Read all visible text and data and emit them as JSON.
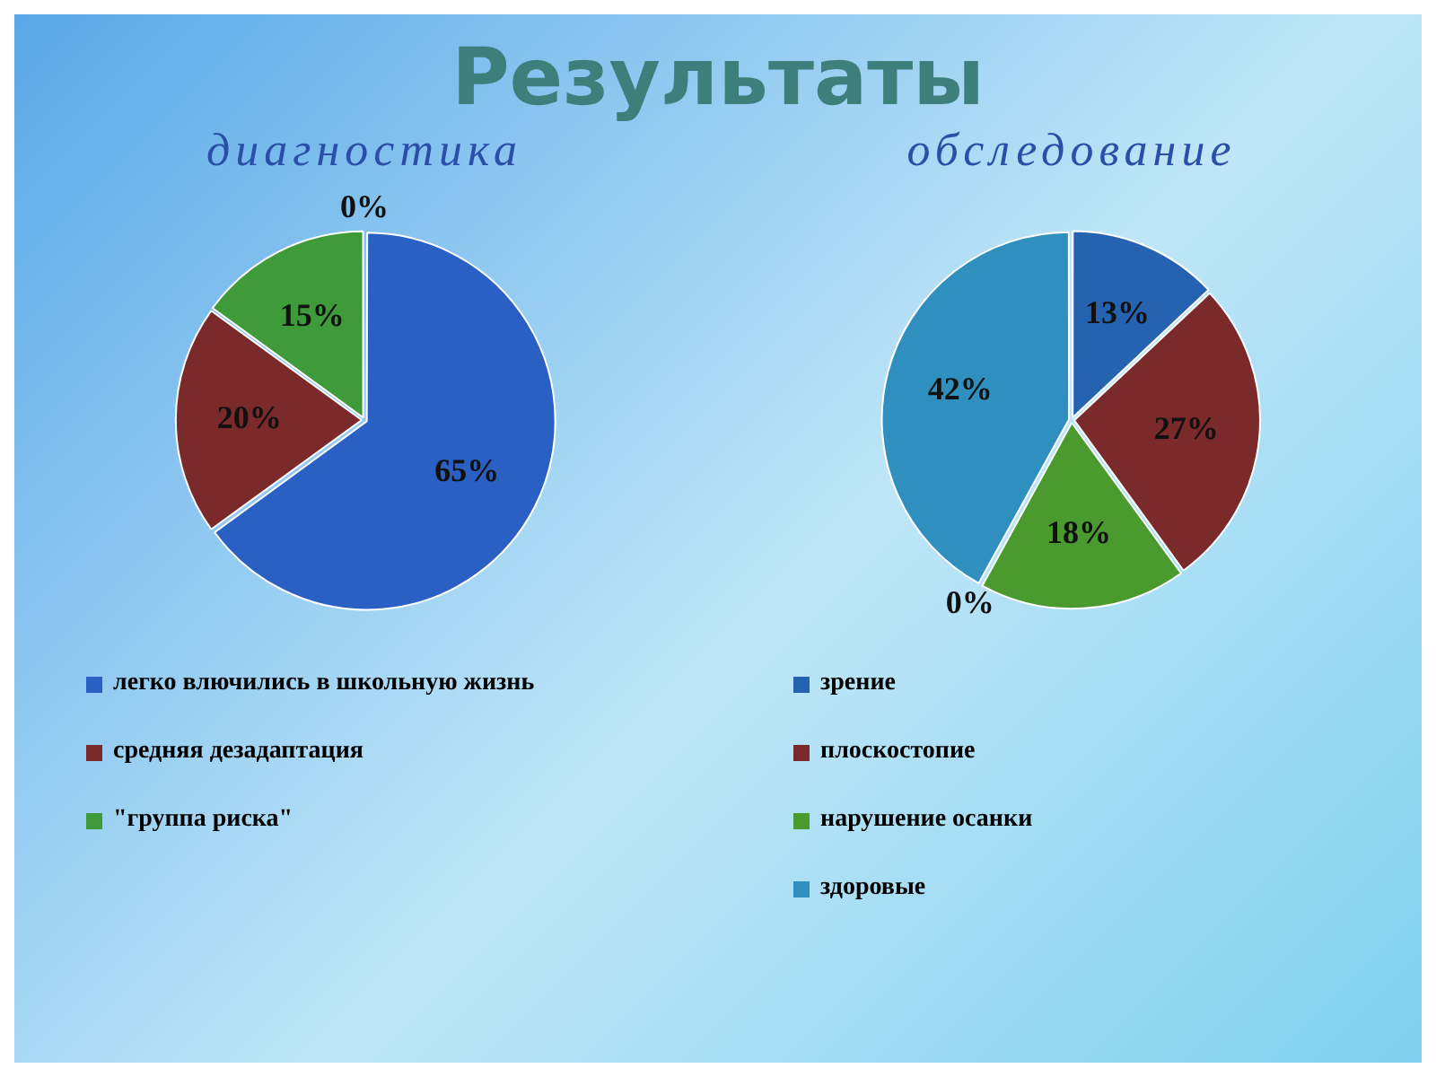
{
  "chart_data": [
    {
      "type": "pie",
      "title": "Результаты",
      "subtitle": "диагностика",
      "categories": [
        "легко влючились в школьную жизнь",
        "средняя дезадаптация",
        "\"группа риска\"",
        null
      ],
      "values": [
        65,
        20,
        15,
        0
      ],
      "colors": [
        "#2a5fc4",
        "#7a2a2a",
        "#3f9a3a",
        "#1f3f8f"
      ],
      "value_labels": [
        "65%",
        "20%",
        "15%",
        "0%"
      ],
      "legend": "bottom"
    },
    {
      "type": "pie",
      "subtitle": "обследование",
      "categories": [
        "зрение",
        "плоскостопие",
        "нарушение осанки",
        null,
        "здоровые"
      ],
      "values": [
        13,
        27,
        18,
        0,
        42
      ],
      "colors": [
        "#2563b0",
        "#7a2a2a",
        "#4a9a30",
        "#5a3a8a",
        "#2f8fbf"
      ],
      "value_labels": [
        "13%",
        "27%",
        "18%",
        "0%",
        "42%"
      ],
      "legend": "bottom"
    }
  ]
}
